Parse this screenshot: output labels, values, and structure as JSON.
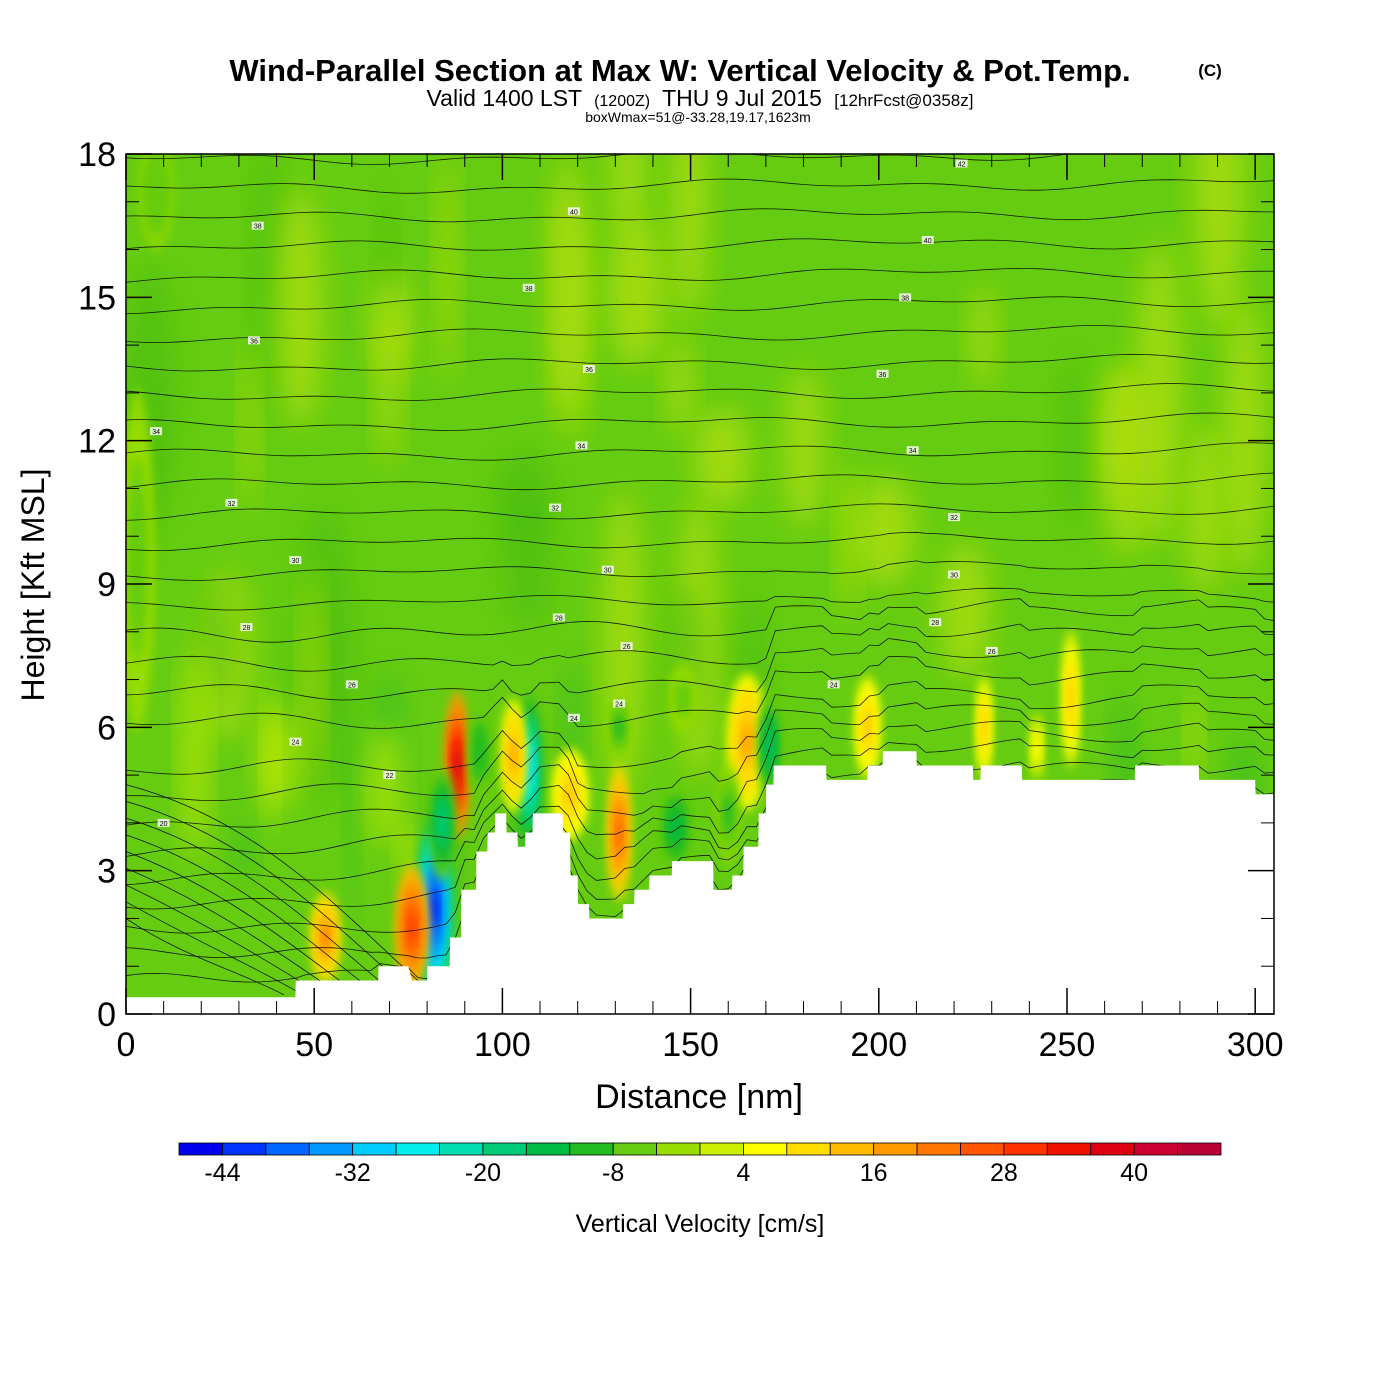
{
  "header": {
    "title": "Wind-Parallel Section at Max W: Vertical Velocity & Pot.Temp.",
    "copyright": "(C)",
    "valid_prefix": "Valid 1400 LST",
    "valid_utc": "(1200Z)",
    "valid_date": "THU 9 Jul 2015",
    "forecast": "[12hrFcst@0358z]",
    "box_info": "boxWmax=51@-33.28,19.17,1623m"
  },
  "chart_data": {
    "type": "heatmap",
    "xlabel": "Distance [nm]",
    "ylabel": "Height [Kft MSL]",
    "xlim": [
      0,
      305
    ],
    "ylim": [
      0,
      18
    ],
    "x_ticks": [
      0,
      50,
      100,
      150,
      200,
      250,
      300
    ],
    "y_ticks": [
      0,
      3,
      6,
      9,
      12,
      15,
      18
    ],
    "x_tick_labels": [
      "0",
      "50",
      "100",
      "150",
      "200",
      "250",
      "300"
    ],
    "y_tick_labels": [
      "0",
      "3",
      "6",
      "9",
      "12",
      "15",
      "18"
    ],
    "colorbar": {
      "label": "Vertical Velocity [cm/s]",
      "bounds": [
        -48,
        -44,
        -40,
        -36,
        -32,
        -28,
        -24,
        -20,
        -16,
        -12,
        -8,
        -4,
        0,
        4,
        8,
        12,
        16,
        20,
        24,
        28,
        32,
        36,
        40,
        44,
        48
      ],
      "colors": [
        "#0000ee",
        "#0033ff",
        "#0066ff",
        "#0099ff",
        "#00ccff",
        "#00eeee",
        "#00ddb0",
        "#00cc77",
        "#00bb44",
        "#22bb22",
        "#66cc11",
        "#99dd00",
        "#ccee00",
        "#ffff00",
        "#ffdd00",
        "#ffbb00",
        "#ff9900",
        "#ff7700",
        "#ff5500",
        "#ff3300",
        "#ee1100",
        "#dd0011",
        "#cc0033",
        "#bb0033"
      ],
      "tick_values": [
        -44,
        -32,
        -20,
        -8,
        4,
        16,
        28,
        40
      ],
      "tick_labels": [
        "-44",
        "-32",
        "-20",
        "-8",
        "4",
        "16",
        "28",
        "40"
      ]
    },
    "background_color": "#66cc11",
    "positive_patch_color": "#aadd11",
    "terrain": [
      [
        0,
        0.35
      ],
      [
        10,
        0.35
      ],
      [
        20,
        0.35
      ],
      [
        30,
        0.35
      ],
      [
        45,
        0.35
      ],
      [
        45.1,
        0.7
      ],
      [
        50,
        0.7
      ],
      [
        60,
        0.7
      ],
      [
        67,
        0.7
      ],
      [
        67.1,
        1
      ],
      [
        75,
        1
      ],
      [
        76,
        0.7
      ],
      [
        80,
        0.7
      ],
      [
        80.1,
        1
      ],
      [
        86,
        1
      ],
      [
        86.1,
        1.6
      ],
      [
        89,
        1.6
      ],
      [
        89.1,
        2.6
      ],
      [
        93,
        2.6
      ],
      [
        93.1,
        3.4
      ],
      [
        96,
        3.4
      ],
      [
        96.1,
        3.8
      ],
      [
        98,
        3.8
      ],
      [
        98.1,
        4.2
      ],
      [
        101,
        4.2
      ],
      [
        101.1,
        3.8
      ],
      [
        104,
        3.8
      ],
      [
        104.1,
        3.5
      ],
      [
        106,
        3.5
      ],
      [
        106.1,
        3.8
      ],
      [
        108,
        3.8
      ],
      [
        108.1,
        4.2
      ],
      [
        116,
        4.2
      ],
      [
        116.1,
        3.8
      ],
      [
        118,
        3.8
      ],
      [
        118.1,
        2.9
      ],
      [
        120,
        2.9
      ],
      [
        120.1,
        2.3
      ],
      [
        123,
        2.3
      ],
      [
        123.1,
        2
      ],
      [
        132,
        2
      ],
      [
        132.1,
        2.3
      ],
      [
        135,
        2.3
      ],
      [
        135.1,
        2.6
      ],
      [
        139,
        2.6
      ],
      [
        139.1,
        2.9
      ],
      [
        145,
        2.9
      ],
      [
        145.1,
        3.2
      ],
      [
        156,
        3.2
      ],
      [
        156.1,
        2.6
      ],
      [
        161,
        2.6
      ],
      [
        161.1,
        2.9
      ],
      [
        164,
        2.9
      ],
      [
        164.1,
        3.5
      ],
      [
        168,
        3.5
      ],
      [
        168.1,
        4.2
      ],
      [
        170,
        4.2
      ],
      [
        170.1,
        4.8
      ],
      [
        172,
        4.8
      ],
      [
        172.1,
        5.2
      ],
      [
        186,
        5.2
      ],
      [
        186.1,
        4.9
      ],
      [
        197,
        4.9
      ],
      [
        197.1,
        5.2
      ],
      [
        201,
        5.2
      ],
      [
        201.1,
        5.5
      ],
      [
        210,
        5.5
      ],
      [
        210.1,
        5.2
      ],
      [
        225,
        5.2
      ],
      [
        225.1,
        4.9
      ],
      [
        227,
        4.9
      ],
      [
        227.1,
        5.2
      ],
      [
        238,
        5.2
      ],
      [
        238.1,
        4.9
      ],
      [
        268,
        4.9
      ],
      [
        268.1,
        5.2
      ],
      [
        285,
        5.2
      ],
      [
        285.1,
        4.9
      ],
      [
        300,
        4.9
      ],
      [
        300.1,
        4.6
      ],
      [
        305,
        4.6
      ]
    ],
    "w_features": [
      {
        "x": 82,
        "y": 2.2,
        "sx": 2.2,
        "sy": 1.6,
        "w": -46
      },
      {
        "x": 76,
        "y": 1.8,
        "sx": 2.0,
        "sy": 1.1,
        "w": 30
      },
      {
        "x": 88,
        "y": 5.2,
        "sx": 1.5,
        "sy": 1.3,
        "w": 42
      },
      {
        "x": 84,
        "y": 4.0,
        "sx": 1.6,
        "sy": 1.0,
        "w": -20
      },
      {
        "x": 107,
        "y": 5.1,
        "sx": 1.6,
        "sy": 1.3,
        "w": -30
      },
      {
        "x": 103,
        "y": 5.4,
        "sx": 1.5,
        "sy": 1.0,
        "w": 16
      },
      {
        "x": 53,
        "y": 1.6,
        "sx": 1.8,
        "sy": 0.8,
        "w": 20
      },
      {
        "x": 94,
        "y": 5.5,
        "sx": 1.4,
        "sy": 0.9,
        "w": -12
      },
      {
        "x": 131,
        "y": 3.8,
        "sx": 1.4,
        "sy": 1.2,
        "w": 24
      },
      {
        "x": 118,
        "y": 4.6,
        "sx": 2.2,
        "sy": 0.8,
        "w": 12
      },
      {
        "x": 165,
        "y": 5.7,
        "sx": 2.4,
        "sy": 1.2,
        "w": 16
      },
      {
        "x": 171,
        "y": 5.6,
        "sx": 1.4,
        "sy": 0.9,
        "w": -18
      },
      {
        "x": 146,
        "y": 3.9,
        "sx": 1.8,
        "sy": 0.7,
        "w": -16
      },
      {
        "x": 160,
        "y": 4.2,
        "sx": 1.3,
        "sy": 0.9,
        "w": -10
      },
      {
        "x": 197,
        "y": 6.0,
        "sx": 1.5,
        "sy": 0.9,
        "w": 12
      },
      {
        "x": 228,
        "y": 6.0,
        "sx": 0.9,
        "sy": 0.9,
        "w": 14
      },
      {
        "x": 251,
        "y": 6.6,
        "sx": 1.0,
        "sy": 1.2,
        "w": 14
      },
      {
        "x": 242,
        "y": 5.6,
        "sx": 0.8,
        "sy": 0.6,
        "w": 6
      },
      {
        "x": 131,
        "y": 6.0,
        "sx": 1.4,
        "sy": 0.6,
        "w": -10
      },
      {
        "x": 148,
        "y": 6.6,
        "sx": 1.6,
        "sy": 0.6,
        "w": -6
      },
      {
        "x": 3,
        "y": 9.5,
        "sx": 2.0,
        "sy": 3.0,
        "w": -6
      },
      {
        "x": 8,
        "y": 17.2,
        "sx": 2.0,
        "sy": 1.0,
        "w": -8
      }
    ],
    "theta_labels": [
      {
        "x": 10,
        "y": 4.0,
        "label": "20"
      },
      {
        "x": 70,
        "y": 5.0,
        "label": "22"
      },
      {
        "x": 45,
        "y": 5.7,
        "label": "24"
      },
      {
        "x": 60,
        "y": 6.9,
        "label": "26"
      },
      {
        "x": 32,
        "y": 8.1,
        "label": "28"
      },
      {
        "x": 45,
        "y": 9.5,
        "label": "30"
      },
      {
        "x": 28,
        "y": 10.7,
        "label": "32"
      },
      {
        "x": 8,
        "y": 12.2,
        "label": "34"
      },
      {
        "x": 34,
        "y": 14.1,
        "label": "36"
      },
      {
        "x": 35,
        "y": 16.5,
        "label": "38"
      },
      {
        "x": 119,
        "y": 6.2,
        "label": "24"
      },
      {
        "x": 131,
        "y": 6.5,
        "label": "24"
      },
      {
        "x": 133,
        "y": 7.7,
        "label": "26"
      },
      {
        "x": 115,
        "y": 8.3,
        "label": "28"
      },
      {
        "x": 128,
        "y": 9.3,
        "label": "30"
      },
      {
        "x": 114,
        "y": 10.6,
        "label": "32"
      },
      {
        "x": 121,
        "y": 11.9,
        "label": "34"
      },
      {
        "x": 123,
        "y": 13.5,
        "label": "36"
      },
      {
        "x": 107,
        "y": 15.2,
        "label": "38"
      },
      {
        "x": 119,
        "y": 16.8,
        "label": "40"
      },
      {
        "x": 188,
        "y": 6.9,
        "label": "24"
      },
      {
        "x": 230,
        "y": 7.6,
        "label": "26"
      },
      {
        "x": 215,
        "y": 8.2,
        "label": "28"
      },
      {
        "x": 220,
        "y": 9.2,
        "label": "30"
      },
      {
        "x": 220,
        "y": 10.4,
        "label": "32"
      },
      {
        "x": 209,
        "y": 11.8,
        "label": "34"
      },
      {
        "x": 201,
        "y": 13.4,
        "label": "36"
      },
      {
        "x": 207,
        "y": 15.0,
        "label": "38"
      },
      {
        "x": 213,
        "y": 16.2,
        "label": "40"
      },
      {
        "x": 222,
        "y": 17.8,
        "label": "42"
      }
    ]
  }
}
